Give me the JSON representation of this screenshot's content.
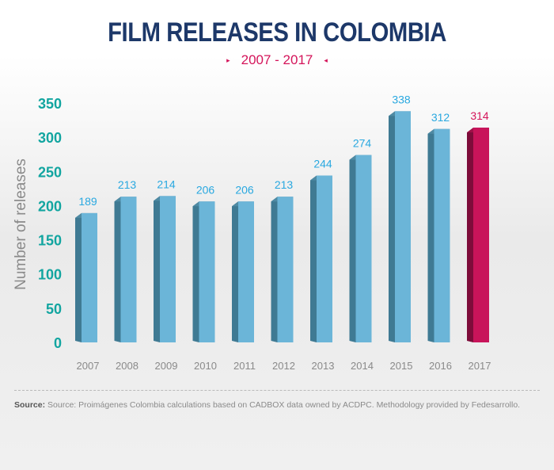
{
  "title": "FILM RELEASES IN COLOMBIA",
  "subtitle": {
    "left_marker": "▸",
    "text": "2007 - 2017",
    "right_marker": "◂"
  },
  "source": {
    "label": "Source:",
    "text": "Source: Proimágenes Colombia calculations based on CADBOX data owned by ACDPC. Methodology provided by Fedesarrollo."
  },
  "chart_data": {
    "type": "bar",
    "title": "FILM RELEASES IN COLOMBIA",
    "subtitle": "2007 - 2017",
    "xlabel": "",
    "ylabel": "Number of releases",
    "categories": [
      "2007",
      "2008",
      "2009",
      "2010",
      "2011",
      "2012",
      "2013",
      "2014",
      "2015",
      "2016",
      "2017"
    ],
    "values": [
      189,
      213,
      214,
      206,
      206,
      213,
      244,
      274,
      338,
      312,
      314
    ],
    "yticks": [
      0,
      50,
      100,
      150,
      200,
      250,
      300,
      350
    ],
    "ylim": [
      0,
      350
    ],
    "grid": false,
    "highlight_category": "2017",
    "colors": {
      "bar": "#6bb5d8",
      "bar_highlight": "#c8145a",
      "ytick": "#12a5a0",
      "value_label": "#29a8e0",
      "value_label_highlight": "#d4145a",
      "xtick_highlight": "#1d3869"
    }
  }
}
